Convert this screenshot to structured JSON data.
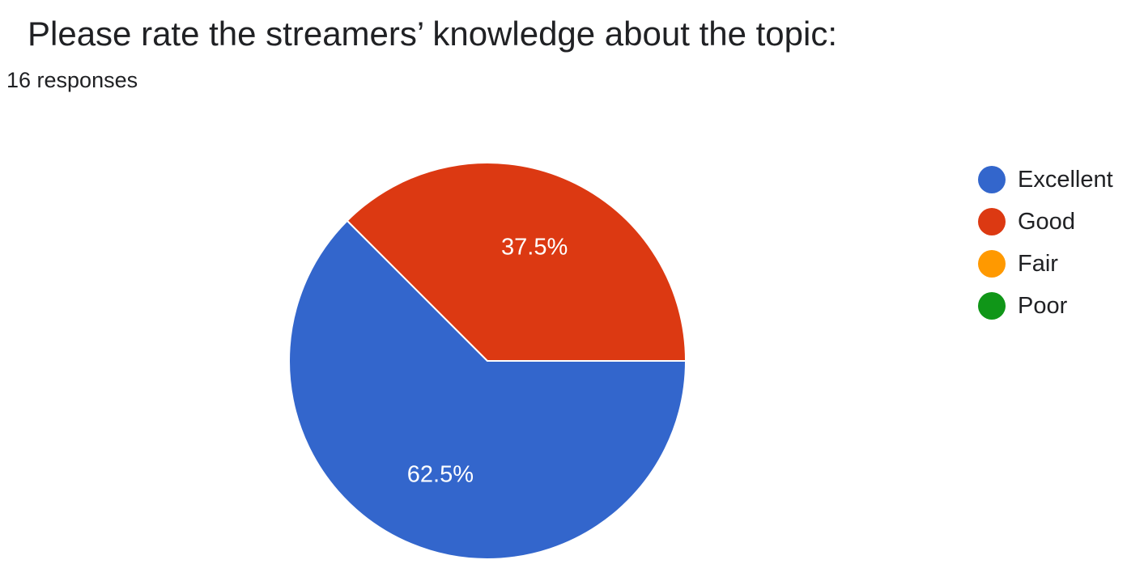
{
  "question": {
    "title": "Please rate the streamers’ knowledge about the topic:",
    "responses_label": "16 responses"
  },
  "chart_data": {
    "type": "pie",
    "title": "Please rate the streamers’ knowledge about the topic:",
    "total_responses": 16,
    "slices": [
      {
        "label": "Excellent",
        "value": 10,
        "percent": 62.5,
        "percent_label": "62.5%",
        "color": "#3366cc"
      },
      {
        "label": "Good",
        "value": 6,
        "percent": 37.5,
        "percent_label": "37.5%",
        "color": "#dc3912"
      },
      {
        "label": "Fair",
        "value": 0,
        "percent": 0,
        "percent_label": "",
        "color": "#ff9900"
      },
      {
        "label": "Poor",
        "value": 0,
        "percent": 0,
        "percent_label": "",
        "color": "#109618"
      }
    ],
    "legend_position": "right"
  },
  "legend": {
    "items": [
      {
        "label": "Excellent",
        "color": "#3366cc"
      },
      {
        "label": "Good",
        "color": "#dc3912"
      },
      {
        "label": "Fair",
        "color": "#ff9900"
      },
      {
        "label": "Poor",
        "color": "#109618"
      }
    ]
  }
}
